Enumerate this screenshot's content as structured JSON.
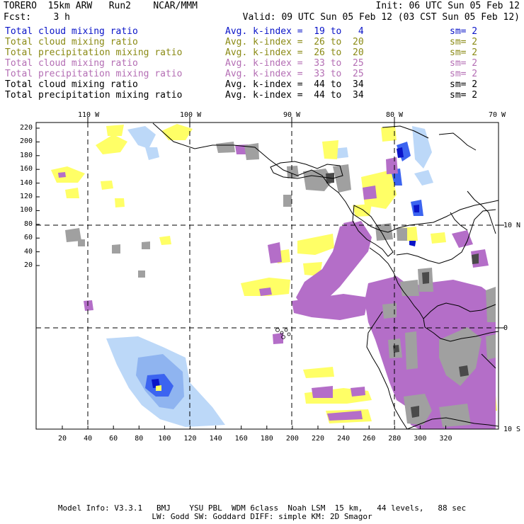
{
  "header": {
    "model": "TORERO  15km ARW   Run2    NCAR/MMM",
    "init": "Init: 06 UTC Sun 05 Feb 12",
    "fcst": "Fcst:    3 h",
    "valid": "Valid: 09 UTC Sun 05 Feb 12 (03 CST Sun 05 Feb 12)"
  },
  "legend": [
    {
      "name": "Total cloud mixing ratio",
      "avg": "Avg. k-index =  19 to   4",
      "sm": "sm= 2",
      "color": "#0a14c8"
    },
    {
      "name": "Total cloud mixing ratio",
      "avg": "Avg. k-index =  26 to  20",
      "sm": "sm= 2",
      "color": "#8a8a14"
    },
    {
      "name": "Total precipitation mixing ratio",
      "avg": "Avg. k-index =  26 to  20",
      "sm": "sm= 2",
      "color": "#8a8a14"
    },
    {
      "name": "Total cloud mixing ratio",
      "avg": "Avg. k-index =  33 to  25",
      "sm": "sm= 2",
      "color": "#b46eb4"
    },
    {
      "name": "Total precipitation mixing ratio",
      "avg": "Avg. k-index =  33 to  25",
      "sm": "sm= 2",
      "color": "#b46eb4"
    },
    {
      "name": "Total cloud mixing ratio",
      "avg": "Avg. k-index =  44 to  34",
      "sm": "sm= 2",
      "color": "#000000"
    },
    {
      "name": "Total precipitation mixing ratio",
      "avg": "Avg. k-index =  44 to  34",
      "sm": "sm= 2",
      "color": "#000000"
    }
  ],
  "axes": {
    "lon_labels": [
      "110 W",
      "100 W",
      "90 W",
      "80 W",
      "70 W"
    ],
    "lat_labels": [
      "10 N",
      "0",
      "10 S"
    ],
    "y_ticks": [
      "220",
      "200",
      "180",
      "160",
      "140",
      "120",
      "100",
      "80",
      "60",
      "40",
      "20"
    ],
    "x_ticks": [
      "20",
      "40",
      "60",
      "80",
      "100",
      "120",
      "140",
      "160",
      "180",
      "200",
      "220",
      "240",
      "260",
      "280",
      "300",
      "320"
    ]
  },
  "colors": {
    "yellow": "#ffff66",
    "purple": "#b46ec8",
    "light_blue": "#bcd8f8",
    "blue": "#3c64f0",
    "dark_blue": "#0a14c8",
    "gray": "#a0a0a0",
    "dark_gray": "#4a4a4a"
  },
  "footer": {
    "line1": "Model Info: V3.3.1   BMJ    YSU PBL  WDM 6class  Noah LSM  15 km,   44 levels,   88 sec",
    "line2": "LW: Godd SW: Goddard DIFF: simple KM: 2D Smagor"
  }
}
